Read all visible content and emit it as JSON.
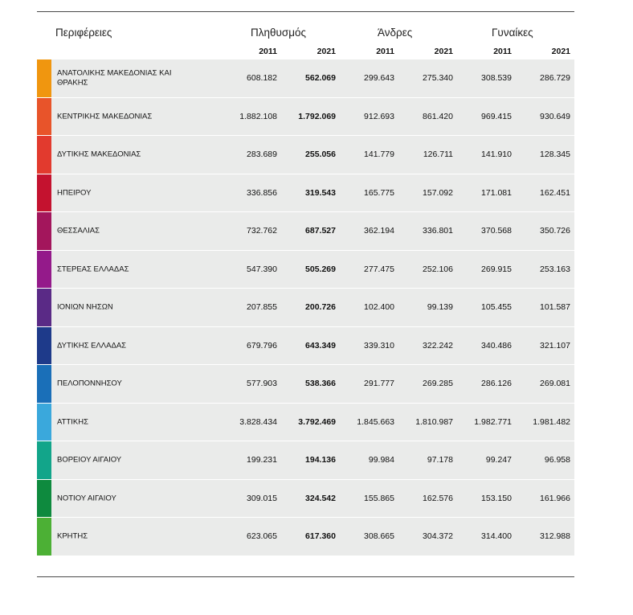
{
  "header": {
    "regions": "Περιφέρειες",
    "population": "Πληθυσμός",
    "men": "Άνδρες",
    "women": "Γυναίκες",
    "years": [
      "2011",
      "2021",
      "2011",
      "2021",
      "2011",
      "2021"
    ]
  },
  "rows": [
    {
      "name": "ΑΝΑΤΟΛΙΚΗΣ ΜΑΚΕΔΟΝΙΑΣ ΚΑΙ ΘΡΑΚΗΣ",
      "color": "#f0960f",
      "values": [
        "608.182",
        "562.069",
        "299.643",
        "275.340",
        "308.539",
        "286.729"
      ]
    },
    {
      "name": "ΚΕΝΤΡΙΚΗΣ ΜΑΚΕΔΟΝΙΑΣ",
      "color": "#e8542a",
      "values": [
        "1.882.108",
        "1.792.069",
        "912.693",
        "861.420",
        "969.415",
        "930.649"
      ]
    },
    {
      "name": "ΔΥΤΙΚΗΣ ΜΑΚΕΔΟΝΙΑΣ",
      "color": "#e23a2e",
      "values": [
        "283.689",
        "255.056",
        "141.779",
        "126.711",
        "141.910",
        "128.345"
      ]
    },
    {
      "name": "ΗΠΕΙΡΟΥ",
      "color": "#c4122f",
      "values": [
        "336.856",
        "319.543",
        "165.775",
        "157.092",
        "171.081",
        "162.451"
      ]
    },
    {
      "name": "ΘΕΣΣΑΛΙΑΣ",
      "color": "#a3165c",
      "values": [
        "732.762",
        "687.527",
        "362.194",
        "336.801",
        "370.568",
        "350.726"
      ]
    },
    {
      "name": "ΣΤΕΡΕΑΣ ΕΛΛΑΔΑΣ",
      "color": "#941a8a",
      "values": [
        "547.390",
        "505.269",
        "277.475",
        "252.106",
        "269.915",
        "253.163"
      ]
    },
    {
      "name": "ΙΟΝΙΩΝ ΝΗΣΩΝ",
      "color": "#5a2a86",
      "values": [
        "207.855",
        "200.726",
        "102.400",
        "99.139",
        "105.455",
        "101.587"
      ]
    },
    {
      "name": "ΔΥΤΙΚΗΣ ΕΛΛΑΔΑΣ",
      "color": "#1e3a8a",
      "values": [
        "679.796",
        "643.349",
        "339.310",
        "322.242",
        "340.486",
        "321.107"
      ]
    },
    {
      "name": "ΠΕΛΟΠΟΝΝΗΣΟΥ",
      "color": "#1a6fb8",
      "values": [
        "577.903",
        "538.366",
        "291.777",
        "269.285",
        "286.126",
        "269.081"
      ]
    },
    {
      "name": "ΑΤΤΙΚΗΣ",
      "color": "#3aa8dc",
      "values": [
        "3.828.434",
        "3.792.469",
        "1.845.663",
        "1.810.987",
        "1.982.771",
        "1.981.482"
      ]
    },
    {
      "name": "ΒΟΡΕΙΟΥ ΑΙΓΑΙΟΥ",
      "color": "#12a58a",
      "values": [
        "199.231",
        "194.136",
        "99.984",
        "97.178",
        "99.247",
        "96.958"
      ]
    },
    {
      "name": "ΝΟΤΙΟΥ ΑΙΓΑΙΟΥ",
      "color": "#0e8a3e",
      "values": [
        "309.015",
        "324.542",
        "155.865",
        "162.576",
        "153.150",
        "161.966"
      ]
    },
    {
      "name": "ΚΡΗΤΗΣ",
      "color": "#4cb035",
      "values": [
        "623.065",
        "617.360",
        "308.665",
        "304.372",
        "314.400",
        "312.988"
      ]
    }
  ]
}
